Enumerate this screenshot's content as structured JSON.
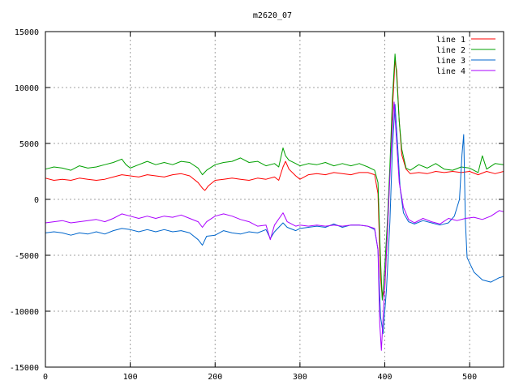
{
  "chart_data": {
    "type": "line",
    "title": "m2620_07",
    "xlabel": "",
    "ylabel": "",
    "xlim": [
      0,
      540
    ],
    "ylim": [
      -15000,
      15000
    ],
    "xticks": [
      0,
      100,
      200,
      300,
      400,
      500
    ],
    "yticks": [
      -15000,
      -10000,
      -5000,
      0,
      5000,
      10000,
      15000
    ],
    "grid": true,
    "legend_position": "top-right",
    "series": [
      {
        "name": "line 1",
        "color": "#ff0000",
        "points": [
          [
            0,
            1900
          ],
          [
            10,
            1700
          ],
          [
            20,
            1800
          ],
          [
            30,
            1700
          ],
          [
            40,
            1900
          ],
          [
            50,
            1800
          ],
          [
            60,
            1700
          ],
          [
            70,
            1800
          ],
          [
            80,
            2000
          ],
          [
            90,
            2200
          ],
          [
            100,
            2100
          ],
          [
            110,
            2000
          ],
          [
            120,
            2200
          ],
          [
            130,
            2100
          ],
          [
            140,
            2000
          ],
          [
            150,
            2200
          ],
          [
            160,
            2300
          ],
          [
            170,
            2100
          ],
          [
            180,
            1500
          ],
          [
            185,
            1000
          ],
          [
            188,
            800
          ],
          [
            192,
            1200
          ],
          [
            200,
            1700
          ],
          [
            210,
            1800
          ],
          [
            220,
            1900
          ],
          [
            230,
            1800
          ],
          [
            240,
            1700
          ],
          [
            250,
            1900
          ],
          [
            260,
            1800
          ],
          [
            270,
            2000
          ],
          [
            275,
            1700
          ],
          [
            280,
            2900
          ],
          [
            283,
            3400
          ],
          [
            287,
            2700
          ],
          [
            295,
            2100
          ],
          [
            300,
            1800
          ],
          [
            310,
            2200
          ],
          [
            320,
            2300
          ],
          [
            330,
            2200
          ],
          [
            340,
            2400
          ],
          [
            350,
            2300
          ],
          [
            360,
            2200
          ],
          [
            370,
            2400
          ],
          [
            380,
            2400
          ],
          [
            388,
            2200
          ],
          [
            392,
            500
          ],
          [
            395,
            -7000
          ],
          [
            397,
            -8800
          ],
          [
            400,
            -8000
          ],
          [
            403,
            -3000
          ],
          [
            406,
            2500
          ],
          [
            409,
            8000
          ],
          [
            412,
            12400
          ],
          [
            414,
            11500
          ],
          [
            417,
            7000
          ],
          [
            420,
            4000
          ],
          [
            425,
            2700
          ],
          [
            430,
            2300
          ],
          [
            440,
            2400
          ],
          [
            450,
            2300
          ],
          [
            460,
            2500
          ],
          [
            470,
            2400
          ],
          [
            480,
            2500
          ],
          [
            490,
            2400
          ],
          [
            500,
            2500
          ],
          [
            510,
            2200
          ],
          [
            520,
            2500
          ],
          [
            530,
            2300
          ],
          [
            540,
            2500
          ]
        ]
      },
      {
        "name": "line 2",
        "color": "#00a000",
        "points": [
          [
            0,
            2700
          ],
          [
            10,
            2900
          ],
          [
            20,
            2800
          ],
          [
            30,
            2600
          ],
          [
            40,
            3000
          ],
          [
            50,
            2800
          ],
          [
            60,
            2900
          ],
          [
            70,
            3100
          ],
          [
            80,
            3300
          ],
          [
            90,
            3600
          ],
          [
            95,
            3100
          ],
          [
            100,
            2800
          ],
          [
            110,
            3100
          ],
          [
            120,
            3400
          ],
          [
            130,
            3100
          ],
          [
            140,
            3300
          ],
          [
            150,
            3100
          ],
          [
            160,
            3400
          ],
          [
            170,
            3300
          ],
          [
            180,
            2800
          ],
          [
            185,
            2200
          ],
          [
            190,
            2600
          ],
          [
            200,
            3100
          ],
          [
            210,
            3300
          ],
          [
            220,
            3400
          ],
          [
            230,
            3700
          ],
          [
            240,
            3300
          ],
          [
            250,
            3400
          ],
          [
            260,
            3000
          ],
          [
            270,
            3200
          ],
          [
            275,
            2900
          ],
          [
            280,
            4600
          ],
          [
            283,
            3900
          ],
          [
            287,
            3500
          ],
          [
            295,
            3200
          ],
          [
            300,
            3000
          ],
          [
            310,
            3200
          ],
          [
            320,
            3100
          ],
          [
            330,
            3300
          ],
          [
            340,
            3000
          ],
          [
            350,
            3200
          ],
          [
            360,
            3000
          ],
          [
            370,
            3200
          ],
          [
            380,
            2900
          ],
          [
            388,
            2600
          ],
          [
            392,
            1500
          ],
          [
            395,
            -5500
          ],
          [
            397,
            -9000
          ],
          [
            400,
            -6000
          ],
          [
            403,
            -2000
          ],
          [
            406,
            3000
          ],
          [
            409,
            9000
          ],
          [
            412,
            13000
          ],
          [
            414,
            11000
          ],
          [
            417,
            7000
          ],
          [
            420,
            4500
          ],
          [
            425,
            2800
          ],
          [
            430,
            2600
          ],
          [
            440,
            3100
          ],
          [
            450,
            2800
          ],
          [
            460,
            3200
          ],
          [
            470,
            2700
          ],
          [
            480,
            2600
          ],
          [
            490,
            2900
          ],
          [
            500,
            2800
          ],
          [
            510,
            2400
          ],
          [
            515,
            3900
          ],
          [
            520,
            2700
          ],
          [
            530,
            3200
          ],
          [
            540,
            3100
          ]
        ]
      },
      {
        "name": "line 3",
        "color": "#0066cc",
        "points": [
          [
            0,
            -3000
          ],
          [
            10,
            -2900
          ],
          [
            20,
            -3000
          ],
          [
            30,
            -3200
          ],
          [
            40,
            -3000
          ],
          [
            50,
            -3100
          ],
          [
            60,
            -2900
          ],
          [
            70,
            -3100
          ],
          [
            80,
            -2800
          ],
          [
            90,
            -2600
          ],
          [
            100,
            -2700
          ],
          [
            110,
            -2900
          ],
          [
            120,
            -2700
          ],
          [
            130,
            -2900
          ],
          [
            140,
            -2700
          ],
          [
            150,
            -2900
          ],
          [
            160,
            -2800
          ],
          [
            170,
            -3000
          ],
          [
            180,
            -3600
          ],
          [
            185,
            -4100
          ],
          [
            190,
            -3300
          ],
          [
            200,
            -3200
          ],
          [
            210,
            -2800
          ],
          [
            220,
            -3000
          ],
          [
            230,
            -3100
          ],
          [
            240,
            -2900
          ],
          [
            250,
            -3000
          ],
          [
            260,
            -2700
          ],
          [
            265,
            -3500
          ],
          [
            270,
            -2900
          ],
          [
            280,
            -2100
          ],
          [
            285,
            -2500
          ],
          [
            295,
            -2800
          ],
          [
            300,
            -2600
          ],
          [
            310,
            -2500
          ],
          [
            320,
            -2400
          ],
          [
            330,
            -2500
          ],
          [
            340,
            -2200
          ],
          [
            350,
            -2500
          ],
          [
            360,
            -2300
          ],
          [
            370,
            -2300
          ],
          [
            380,
            -2400
          ],
          [
            388,
            -2700
          ],
          [
            392,
            -4500
          ],
          [
            395,
            -10500
          ],
          [
            398,
            -12000
          ],
          [
            402,
            -8000
          ],
          [
            406,
            -2000
          ],
          [
            409,
            4500
          ],
          [
            412,
            8500
          ],
          [
            415,
            5000
          ],
          [
            418,
            1000
          ],
          [
            422,
            -1200
          ],
          [
            428,
            -2000
          ],
          [
            435,
            -2200
          ],
          [
            445,
            -1900
          ],
          [
            455,
            -2100
          ],
          [
            465,
            -2300
          ],
          [
            475,
            -2100
          ],
          [
            482,
            -1500
          ],
          [
            488,
            0
          ],
          [
            491,
            4000
          ],
          [
            493,
            5800
          ],
          [
            495,
            -2000
          ],
          [
            497,
            -5200
          ],
          [
            505,
            -6500
          ],
          [
            515,
            -7200
          ],
          [
            525,
            -7400
          ],
          [
            535,
            -7000
          ],
          [
            540,
            -6900
          ]
        ]
      },
      {
        "name": "line 4",
        "color": "#aa00ff",
        "points": [
          [
            0,
            -2100
          ],
          [
            10,
            -2000
          ],
          [
            20,
            -1900
          ],
          [
            30,
            -2100
          ],
          [
            40,
            -2000
          ],
          [
            50,
            -1900
          ],
          [
            60,
            -1800
          ],
          [
            70,
            -2000
          ],
          [
            80,
            -1700
          ],
          [
            90,
            -1300
          ],
          [
            100,
            -1500
          ],
          [
            110,
            -1700
          ],
          [
            120,
            -1500
          ],
          [
            130,
            -1700
          ],
          [
            140,
            -1500
          ],
          [
            150,
            -1600
          ],
          [
            160,
            -1400
          ],
          [
            170,
            -1700
          ],
          [
            180,
            -2000
          ],
          [
            185,
            -2500
          ],
          [
            190,
            -2000
          ],
          [
            200,
            -1500
          ],
          [
            210,
            -1300
          ],
          [
            220,
            -1500
          ],
          [
            230,
            -1800
          ],
          [
            240,
            -2000
          ],
          [
            250,
            -2400
          ],
          [
            260,
            -2300
          ],
          [
            265,
            -3600
          ],
          [
            270,
            -2300
          ],
          [
            280,
            -1200
          ],
          [
            285,
            -2000
          ],
          [
            295,
            -2400
          ],
          [
            300,
            -2300
          ],
          [
            310,
            -2400
          ],
          [
            320,
            -2300
          ],
          [
            330,
            -2400
          ],
          [
            340,
            -2300
          ],
          [
            350,
            -2400
          ],
          [
            360,
            -2300
          ],
          [
            370,
            -2300
          ],
          [
            380,
            -2400
          ],
          [
            388,
            -2600
          ],
          [
            392,
            -4500
          ],
          [
            394,
            -11000
          ],
          [
            396,
            -13500
          ],
          [
            399,
            -9000
          ],
          [
            403,
            -3000
          ],
          [
            406,
            2000
          ],
          [
            409,
            6500
          ],
          [
            411,
            8700
          ],
          [
            414,
            5000
          ],
          [
            417,
            1500
          ],
          [
            422,
            -700
          ],
          [
            428,
            -1800
          ],
          [
            435,
            -2100
          ],
          [
            445,
            -1700
          ],
          [
            455,
            -2000
          ],
          [
            465,
            -2200
          ],
          [
            475,
            -1700
          ],
          [
            485,
            -1900
          ],
          [
            495,
            -1700
          ],
          [
            505,
            -1600
          ],
          [
            515,
            -1800
          ],
          [
            525,
            -1500
          ],
          [
            535,
            -1000
          ],
          [
            540,
            -1100
          ]
        ]
      }
    ]
  }
}
